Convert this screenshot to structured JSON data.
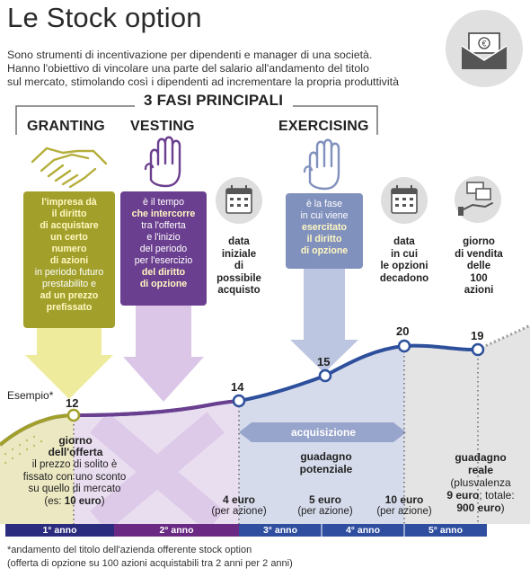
{
  "title": "Le Stock option",
  "intro": [
    "Sono strumenti di incentivazione per dipendenti e manager di una società.",
    "Hanno l'obiettivo di vincolare una parte del salario all'andamento del titolo",
    "sul mercato, stimolando così i dipendenti ad incrementare la propria produttività"
  ],
  "phases_heading": "3 FASI PRINCIPALI",
  "phases": {
    "granting": {
      "name": "GRANTING",
      "description_lines": [
        "l'impresa dà",
        "il diritto",
        "di acquistare",
        "un certo",
        "numero",
        "di azioni",
        "in periodo futuro",
        "prestabilito e",
        "ad un prezzo",
        "prefissato"
      ]
    },
    "vesting": {
      "name": "VESTING",
      "description_lines": [
        "è il tempo",
        "che intercorre",
        "tra l'offerta",
        "e l'inizio",
        "del periodo",
        "per l'esercizio",
        "del diritto",
        "di opzione"
      ]
    },
    "exercising": {
      "name": "EXERCISING",
      "description_lines": [
        "è la fase",
        "in cui viene",
        "esercitato",
        "il diritto",
        "di opzione"
      ]
    }
  },
  "events": {
    "start_date": [
      "data",
      "iniziale",
      "di",
      "possibile",
      "acquisto"
    ],
    "expiry_date": [
      "data",
      "in cui",
      "le opzioni",
      "decadono"
    ],
    "sale_date": [
      "giorno",
      "di vendita",
      "delle",
      "100",
      "azioni"
    ]
  },
  "example_label": "Esempio*",
  "points": {
    "offer": {
      "value": "12",
      "title_lines": [
        "giorno",
        "dell'offerta"
      ],
      "note_lines": [
        "il prezzo di solito è",
        "fissato con uno sconto",
        "su quello di mercato"
      ],
      "note_end_prefix": "(es: ",
      "note_end_value": "10 euro",
      "note_end_suffix": ")"
    },
    "p14": {
      "value": "14"
    },
    "p15": {
      "value": "15"
    },
    "p20": {
      "value": "20"
    },
    "p19": {
      "value": "19"
    }
  },
  "acquisition_label": "acquisizione",
  "potential_gain_lines": [
    "guadagno",
    "potenziale"
  ],
  "real_gain": {
    "title_lines": [
      "guadagno",
      "reale"
    ],
    "line3": "(plusvalenza",
    "line4_value": "9 euro",
    "line4_rest": "; totale:",
    "line5_value": "900 euro",
    "line5_rest": ")"
  },
  "prices": [
    {
      "value": "4 euro",
      "unit": "(per azione)"
    },
    {
      "value": "5 euro",
      "unit": "(per azione)"
    },
    {
      "value": "10 euro",
      "unit": "(per azione)"
    }
  ],
  "years": [
    "1° anno",
    "2° anno",
    "3° anno",
    "4° anno",
    "5° anno"
  ],
  "footnotes": [
    "*andamento del titolo dell'azienda offerente stock option",
    "(offerta di opzione su 100 azioni acquistabili tra 2 anni per 2 anni)"
  ],
  "colors": {
    "granting": "#a2a02b",
    "vesting": "#6b3f8f",
    "exercising": "#8191bd",
    "curve": "#2d4f9c",
    "year_dark": "#2c2c7e",
    "year_purple": "#6a2a84",
    "year_blue": "#2f4ea0"
  }
}
